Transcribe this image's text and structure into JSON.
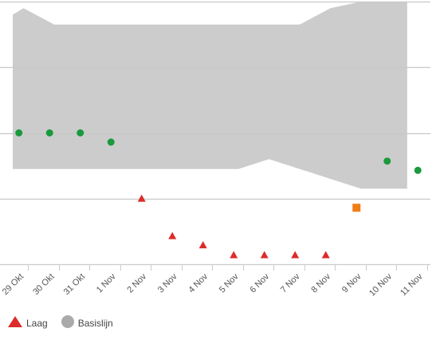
{
  "chart_data": {
    "type": "scatter",
    "x_categories": [
      "29 Okt",
      "30 Okt",
      "31 Okt",
      "1 Nov",
      "2 Nov",
      "3 Nov",
      "4 Nov",
      "5 Nov",
      "6 Nov",
      "7 Nov",
      "8 Nov",
      "9 Nov",
      "10 Nov",
      "11 Nov"
    ],
    "ylim": [
      0,
      4
    ],
    "grid": true,
    "baseline_band": {
      "name": "Basislijn",
      "color": "#cccccc",
      "upper": [
        3.8,
        3.9,
        3.65,
        3.65,
        3.65,
        3.65,
        3.65,
        3.65,
        3.65,
        3.65,
        3.65,
        3.9,
        4.0,
        4.0,
        4.0
      ],
      "lower": [
        1.45,
        1.45,
        1.45,
        1.45,
        1.45,
        1.45,
        1.45,
        1.45,
        1.45,
        1.6,
        1.45,
        1.3,
        1.15,
        1.15,
        1.15
      ],
      "x": [
        -0.35,
        0.0,
        1.0,
        2.0,
        3.0,
        4.0,
        5.0,
        6.0,
        7.0,
        8.0,
        9.0,
        10.0,
        11.0,
        11.9,
        12.5
      ]
    },
    "series": [
      {
        "name": "",
        "marker": "circle",
        "color": "#1a9a3c",
        "points": [
          [
            -0.15,
            2.0
          ],
          [
            0.85,
            2.0
          ],
          [
            1.85,
            2.0
          ],
          [
            2.85,
            1.86
          ],
          [
            11.85,
            1.57
          ],
          [
            12.85,
            1.43
          ]
        ]
      },
      {
        "name": "Laag",
        "marker": "triangle",
        "color": "#dd2b2b",
        "points": [
          [
            3.85,
            1.0
          ],
          [
            4.85,
            0.43
          ],
          [
            5.85,
            0.29
          ],
          [
            6.85,
            0.14
          ],
          [
            7.85,
            0.14
          ],
          [
            8.85,
            0.14
          ],
          [
            9.85,
            0.14
          ]
        ]
      },
      {
        "name": "",
        "marker": "square",
        "color": "#f07d18",
        "points": [
          [
            10.85,
            0.86
          ]
        ]
      }
    ],
    "legend": {
      "position": "bottom-left",
      "items": [
        {
          "label": "Laag",
          "marker": "triangle",
          "color": "#dd2b2b"
        },
        {
          "label": "Basislijn",
          "marker": "circle",
          "color": "#aaaaaa"
        }
      ]
    }
  }
}
